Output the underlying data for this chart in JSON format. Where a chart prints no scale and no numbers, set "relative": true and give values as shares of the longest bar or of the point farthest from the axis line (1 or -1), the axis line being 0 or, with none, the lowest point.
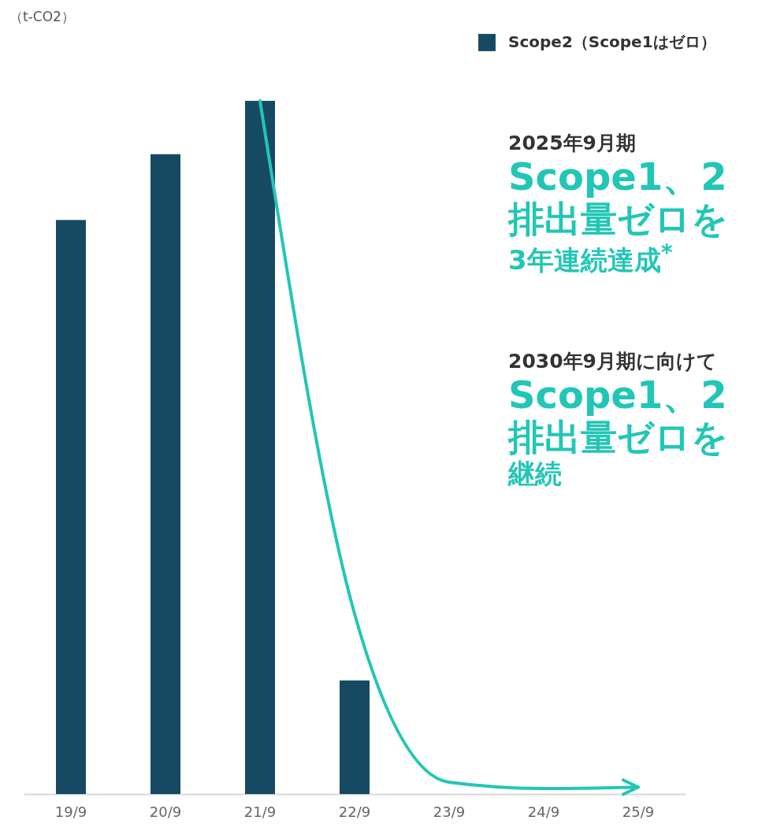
{
  "chart_data": {
    "type": "bar",
    "relative": true,
    "legend": "top right",
    "marker": "none",
    "categories": [
      "19/9",
      "20/9",
      "21/9",
      "22/9",
      "23/9",
      "24/9",
      "25/9"
    ],
    "series": [
      {
        "name": "Scope2（Scope1はゼロ）",
        "color": "#164a62",
        "values": [
          0.828,
          0.923,
          1,
          0.164,
          0,
          0,
          0
        ]
      },
      {
        "type": "line",
        "color": "#22c6b6",
        "x": [
          "21/9",
          "22/9",
          "23/9",
          "24/9",
          "25/9"
        ],
        "values": [
          1,
          0.26,
          0.017,
          0.008,
          0.01
        ]
      }
    ],
    "annotations": [
      "（t-CO2）",
      "2025年9月期",
      "Scope1、2",
      "排出量ゼロを",
      "3年連続達成$^{*}$",
      "2030年9月期に向けて",
      "Scope1、2",
      "排出量ゼロを",
      "継続"
    ]
  }
}
